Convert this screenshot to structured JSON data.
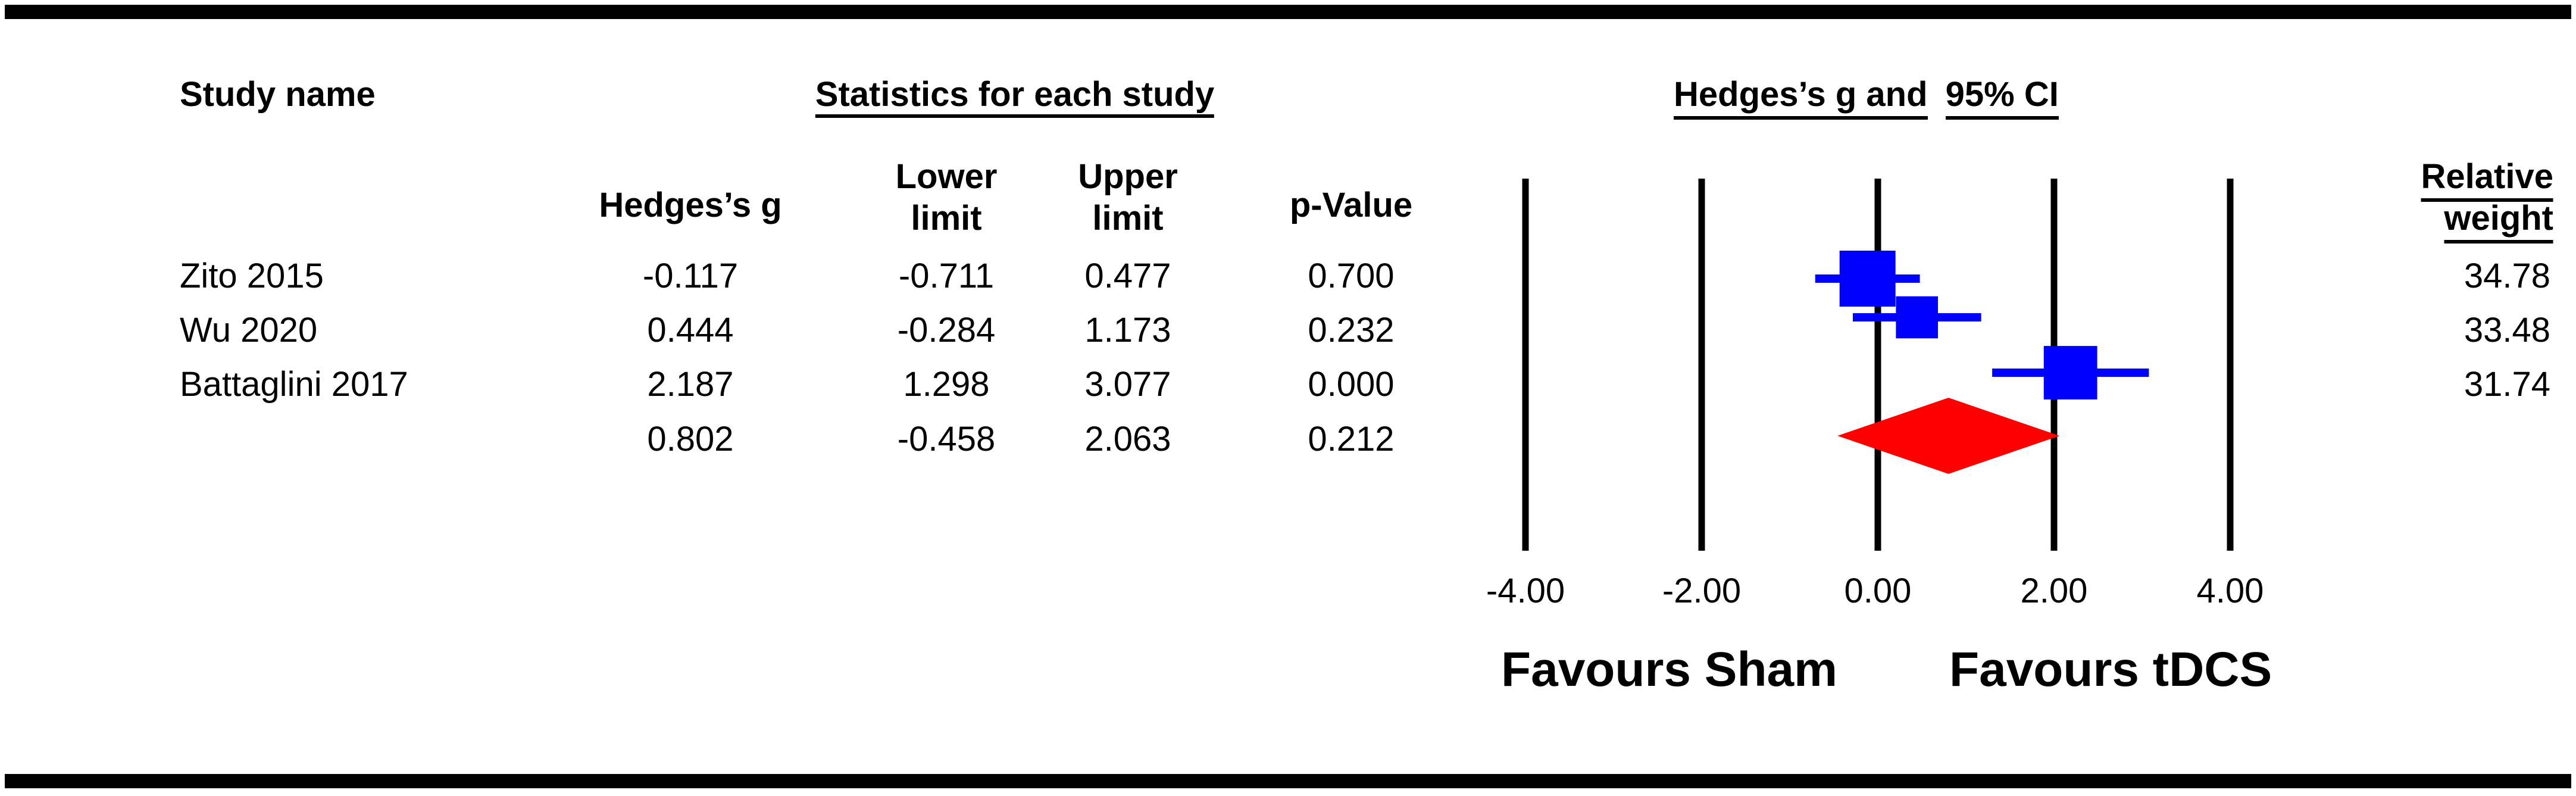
{
  "headers": {
    "study_name": "Study name",
    "stats_group": "Statistics for each study",
    "plot_group_a": "Hedges’s g and",
    "plot_group_b": "95% CI",
    "hedges_g": "Hedges’s g",
    "lower_1": "Lower",
    "lower_2": "limit",
    "upper_1": "Upper",
    "upper_2": "limit",
    "p_value": "p-Value",
    "weight_1": "Relative",
    "weight_2": "weight"
  },
  "rows": [
    {
      "study": "Zito 2015",
      "g": "-0.117",
      "lower": "-0.711",
      "upper": "0.477",
      "p": "0.700",
      "weight": "34.78"
    },
    {
      "study": "Wu 2020",
      "g": "0.444",
      "lower": "-0.284",
      "upper": "1.173",
      "p": "0.232",
      "weight": "33.48"
    },
    {
      "study": "Battaglini 2017",
      "g": "2.187",
      "lower": "1.298",
      "upper": "3.077",
      "p": "0.000",
      "weight": "31.74"
    }
  ],
  "summary": {
    "g": "0.802",
    "lower": "-0.458",
    "upper": "2.063",
    "p": "0.212"
  },
  "chart_data": {
    "type": "forest",
    "xlim": [
      -4,
      4
    ],
    "ticks": [
      -4,
      -2,
      0,
      2,
      4
    ],
    "tick_labels": [
      "-4.00",
      "-2.00",
      "0.00",
      "2.00",
      "4.00"
    ],
    "favours_left": "Favours Sham",
    "favours_right": "Favours tDCS",
    "colors": {
      "study": "#0000ff",
      "summary": "#ff0000",
      "lines": "#000000"
    },
    "studies": [
      {
        "name": "Zito 2015",
        "g": -0.117,
        "lower": -0.711,
        "upper": 0.477,
        "weight": 34.78
      },
      {
        "name": "Wu 2020",
        "g": 0.444,
        "lower": -0.284,
        "upper": 1.173,
        "weight": 33.48
      },
      {
        "name": "Battaglini 2017",
        "g": 2.187,
        "lower": 1.298,
        "upper": 3.077,
        "weight": 31.74
      }
    ],
    "pooled": {
      "g": 0.802,
      "lower": -0.458,
      "upper": 2.063
    }
  }
}
